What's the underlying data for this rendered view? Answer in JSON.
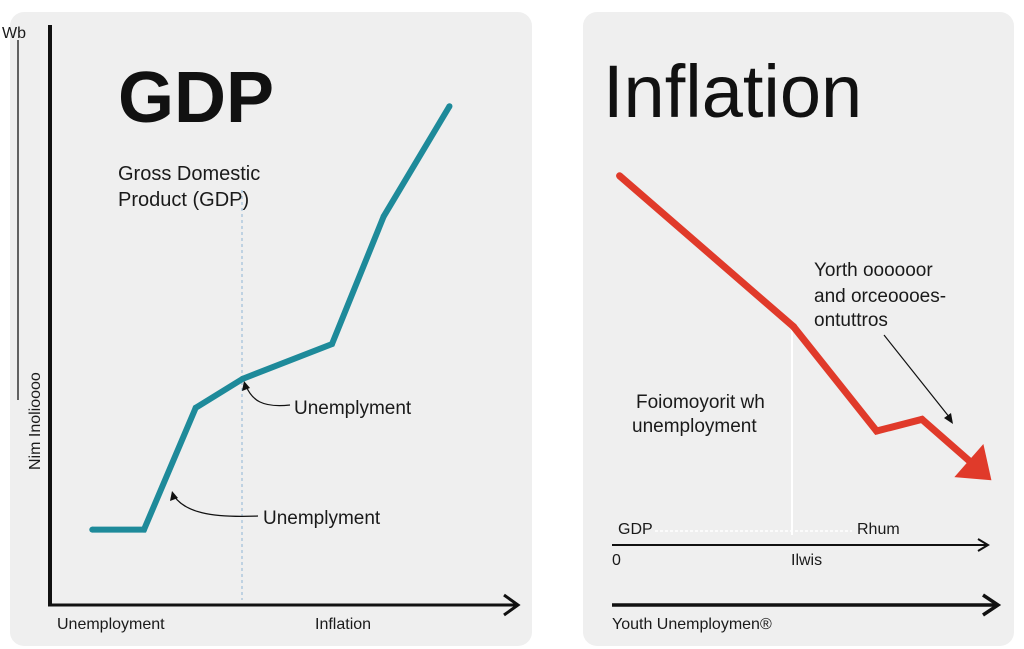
{
  "chart_data": [
    {
      "type": "line",
      "title": "GDP",
      "subtitle_lines": [
        "Gross Domestic",
        "Product (GDP)"
      ],
      "ylabel": "Nim Inolioooo",
      "y_top_label": "Wb",
      "xlabel_left": "Unemployment",
      "xlabel_right": "Inflation",
      "annotations": [
        "Unemplyment",
        "Unemplyment"
      ],
      "xlim": [
        0,
        100
      ],
      "ylim": [
        0,
        100
      ],
      "color": "#1e8a9a",
      "series": [
        {
          "name": "GDP",
          "x": [
            9,
            20,
            31,
            41,
            60,
            71,
            85
          ],
          "y": [
            13,
            13,
            34,
            39,
            45,
            67,
            86
          ]
        }
      ]
    },
    {
      "type": "line",
      "title": "Inflation",
      "annotation_top": [
        "Yorth oooooor",
        "and orceoooes-",
        "ontuttros"
      ],
      "annotation_left": [
        "Foiomoyorit wh",
        "unemployment"
      ],
      "axis_labels": {
        "gdp": "GDP",
        "right": "Rhum",
        "zero": "0",
        "mid": "Ilwis"
      },
      "xlabel": "Youth Unemploymen®",
      "xlim": [
        0,
        100
      ],
      "ylim": [
        0,
        100
      ],
      "color": "#e03a2a",
      "series": [
        {
          "name": "Inflation",
          "x": [
            2,
            48,
            70,
            82,
            96
          ],
          "y": [
            74,
            48,
            30,
            32,
            24
          ]
        }
      ]
    }
  ]
}
